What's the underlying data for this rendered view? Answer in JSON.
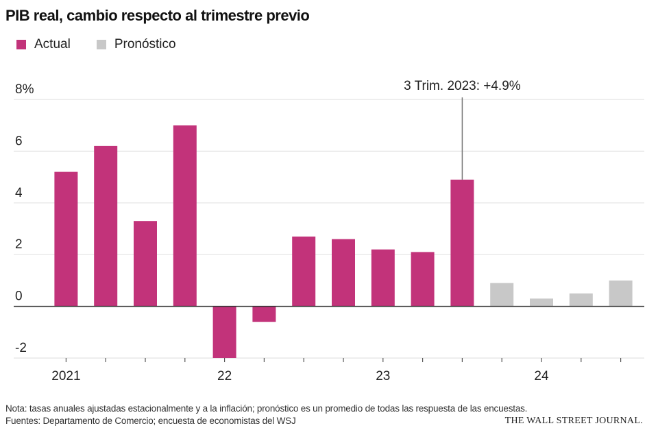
{
  "header": {
    "title": "PIB real, cambio respecto al trimestre previo"
  },
  "legend": {
    "items": [
      {
        "label": "Actual",
        "color": "#c2337a"
      },
      {
        "label": "Pronóstico",
        "color": "#c8c8c8"
      }
    ]
  },
  "footer": {
    "note": "Nota: tasas anuales ajustadas estacionalmente y a la inflación; pronóstico es un promedio de todas las respuesta de las encuestas.",
    "sources": "Fuentes: Departamento de Comercio; encuesta de economistas del WSJ",
    "brand": "THE WALL STREET JOURNAL."
  },
  "chart_data": {
    "type": "bar",
    "title": "PIB real, cambio respecto al trimestre previo",
    "ylim": [
      -2,
      8
    ],
    "y_ticks": [
      -2,
      0,
      2,
      4,
      6,
      8
    ],
    "y_tick_labels": [
      "-2",
      "0",
      "2",
      "4",
      "6",
      "8%"
    ],
    "x_year_labels": [
      {
        "label": "2021",
        "quarter_index": 0
      },
      {
        "label": "22",
        "quarter_index": 4
      },
      {
        "label": "23",
        "quarter_index": 8
      },
      {
        "label": "24",
        "quarter_index": 12
      }
    ],
    "grid": true,
    "legend_position": "top-left",
    "series": [
      {
        "name": "Actual",
        "color": "#c2337a",
        "values": [
          5.2,
          6.2,
          3.3,
          7.0,
          -2.0,
          -0.6,
          2.7,
          2.6,
          2.2,
          2.1,
          4.9
        ]
      },
      {
        "name": "Pronóstico",
        "color": "#c8c8c8",
        "values": [
          0.9,
          0.3,
          0.5,
          1.0
        ]
      }
    ],
    "annotation": {
      "text": "3 Trim. 2023: +4.9%",
      "quarter_index": 10
    }
  }
}
